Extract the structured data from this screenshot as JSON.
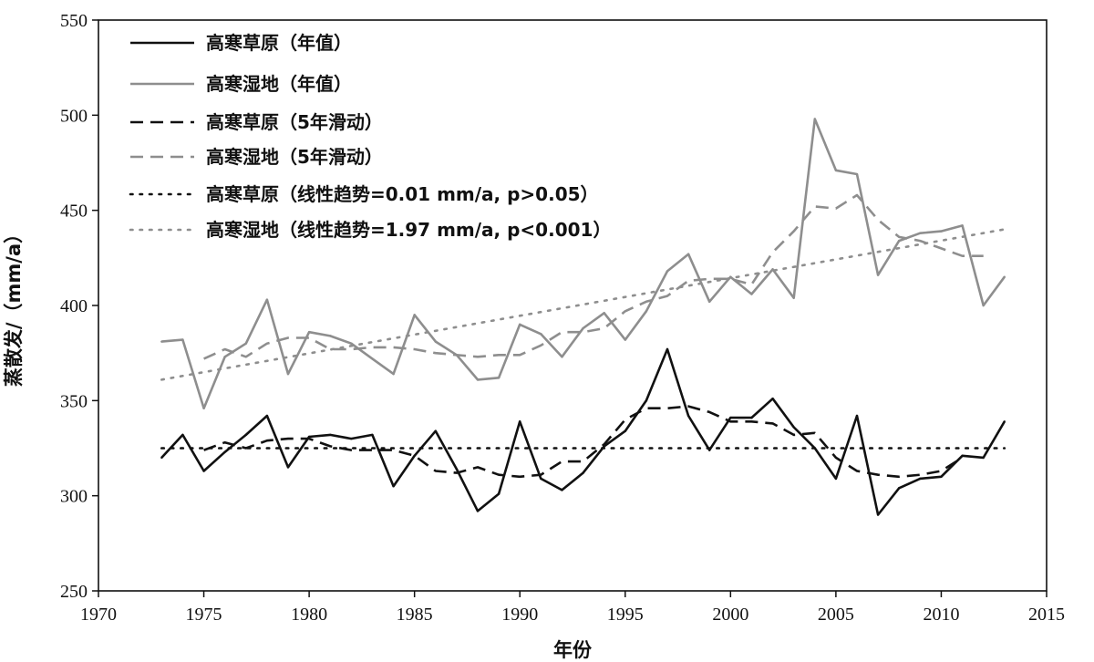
{
  "chart_data": {
    "type": "line",
    "xlabel": "年份",
    "ylabel": "蒸散发/（mm/a）",
    "xlim": [
      1970,
      2015
    ],
    "ylim": [
      250,
      550
    ],
    "xticks": [
      1970,
      1975,
      1980,
      1985,
      1990,
      1995,
      2000,
      2005,
      2010,
      2015
    ],
    "yticks": [
      250,
      300,
      350,
      400,
      450,
      500,
      550
    ],
    "grid": false,
    "legend_position": "top-left",
    "series": [
      {
        "name": "高寒草原（年值）",
        "style": "solid",
        "color": "#111111",
        "x": [
          1973,
          1974,
          1975,
          1976,
          1977,
          1978,
          1979,
          1980,
          1981,
          1982,
          1983,
          1984,
          1985,
          1986,
          1987,
          1988,
          1989,
          1990,
          1991,
          1992,
          1993,
          1994,
          1995,
          1996,
          1997,
          1998,
          1999,
          2000,
          2001,
          2002,
          2003,
          2004,
          2005,
          2006,
          2007,
          2008,
          2009,
          2010,
          2011,
          2012,
          2013
        ],
        "y": [
          320,
          332,
          313,
          323,
          332,
          342,
          315,
          331,
          332,
          330,
          332,
          305,
          321,
          334,
          314,
          292,
          301,
          339,
          309,
          303,
          312,
          326,
          334,
          350,
          377,
          342,
          324,
          341,
          341,
          351,
          336,
          325,
          309,
          342,
          290,
          304,
          309,
          310,
          321,
          320,
          339
        ]
      },
      {
        "name": "高寒湿地（年值）",
        "style": "solid",
        "color": "#8e8e8e",
        "x": [
          1973,
          1974,
          1975,
          1976,
          1977,
          1978,
          1979,
          1980,
          1981,
          1982,
          1983,
          1984,
          1985,
          1986,
          1987,
          1988,
          1989,
          1990,
          1991,
          1992,
          1993,
          1994,
          1995,
          1996,
          1997,
          1998,
          1999,
          2000,
          2001,
          2002,
          2003,
          2004,
          2005,
          2006,
          2007,
          2008,
          2009,
          2010,
          2011,
          2012,
          2013
        ],
        "y": [
          381,
          382,
          346,
          373,
          380,
          403,
          364,
          386,
          384,
          380,
          372,
          364,
          395,
          381,
          374,
          361,
          362,
          390,
          385,
          373,
          388,
          396,
          382,
          397,
          418,
          427,
          402,
          415,
          406,
          419,
          404,
          498,
          471,
          469,
          416,
          434,
          438,
          439,
          442,
          400,
          415
        ]
      },
      {
        "name": "高寒草原（5年滑动）",
        "style": "dashed",
        "color": "#111111",
        "x": [
          1975,
          1976,
          1977,
          1978,
          1979,
          1980,
          1981,
          1982,
          1983,
          1984,
          1985,
          1986,
          1987,
          1988,
          1989,
          1990,
          1991,
          1992,
          1993,
          1994,
          1995,
          1996,
          1997,
          1998,
          1999,
          2000,
          2001,
          2002,
          2003,
          2004,
          2005,
          2006,
          2007,
          2008,
          2009,
          2010,
          2011
        ],
        "y": [
          324,
          328,
          325,
          329,
          330,
          330,
          326,
          324,
          324,
          324,
          321,
          313,
          312,
          315,
          311,
          310,
          311,
          318,
          318,
          327,
          340,
          346,
          346,
          347,
          344,
          339,
          339,
          338,
          332,
          333,
          320,
          313,
          311,
          310,
          311,
          313,
          320
        ]
      },
      {
        "name": "高寒湿地（5年滑动）",
        "style": "dashed",
        "color": "#8e8e8e",
        "x": [
          1975,
          1976,
          1977,
          1978,
          1979,
          1980,
          1981,
          1982,
          1983,
          1984,
          1985,
          1986,
          1987,
          1988,
          1989,
          1990,
          1991,
          1992,
          1993,
          1994,
          1995,
          1996,
          1997,
          1998,
          1999,
          2000,
          2001,
          2002,
          2003,
          2004,
          2005,
          2006,
          2007,
          2008,
          2009,
          2010,
          2011,
          2012
        ],
        "y": [
          372,
          377,
          373,
          380,
          383,
          383,
          377,
          377,
          378,
          378,
          377,
          375,
          374,
          373,
          374,
          374,
          379,
          386,
          386,
          388,
          397,
          402,
          405,
          413,
          414,
          414,
          411,
          428,
          439,
          452,
          451,
          458,
          445,
          436,
          434,
          430,
          426,
          426
        ]
      },
      {
        "name": "高寒草原（线性趋势=0.01 mm/a, p>0.05）",
        "style": "dotted",
        "color": "#111111",
        "x": [
          1973,
          2013
        ],
        "y": [
          325,
          325
        ]
      },
      {
        "name": "高寒湿地（线性趋势=1.97 mm/a, p<0.001）",
        "style": "dotted",
        "color": "#8e8e8e",
        "x": [
          1973,
          2013
        ],
        "y": [
          361,
          440
        ]
      }
    ]
  }
}
